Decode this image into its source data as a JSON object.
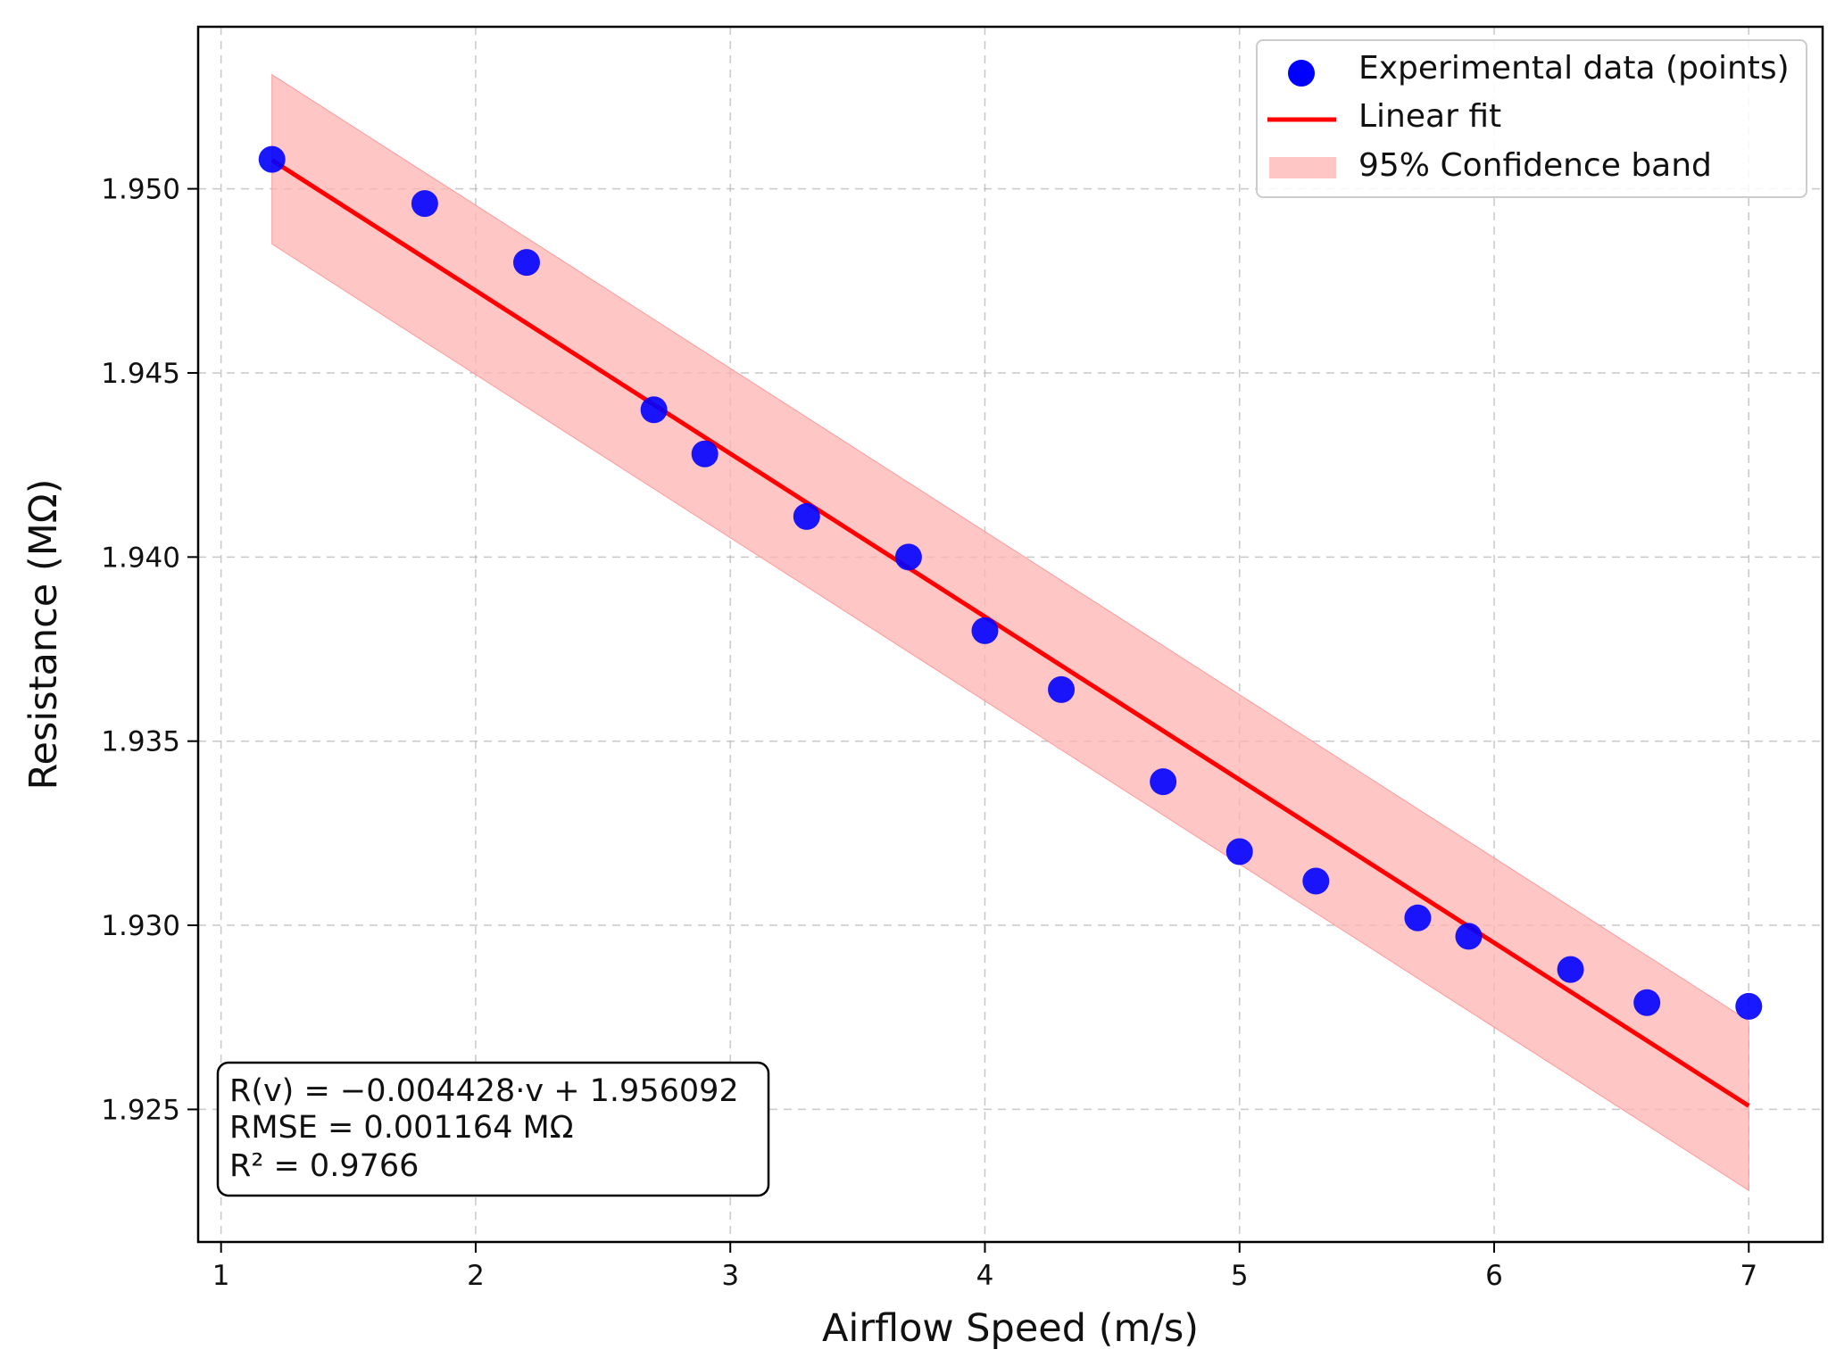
{
  "chart_data": {
    "type": "scatter",
    "title": "",
    "xlabel": "Airflow Speed (m/s)",
    "ylabel": "Resistance (MΩ)",
    "xlim": [
      0.91,
      7.29
    ],
    "ylim": [
      1.9214,
      1.9544
    ],
    "xticks": [
      1,
      2,
      3,
      4,
      5,
      6,
      7
    ],
    "xtick_labels": [
      "1",
      "2",
      "3",
      "4",
      "5",
      "6",
      "7"
    ],
    "yticks": [
      1.925,
      1.93,
      1.935,
      1.94,
      1.945,
      1.95
    ],
    "ytick_labels": [
      "1.925",
      "1.930",
      "1.935",
      "1.940",
      "1.945",
      "1.950"
    ],
    "grid": true,
    "series": [
      {
        "name": "Experimental data (points)",
        "kind": "scatter",
        "color": "#0000ff",
        "x": [
          1.2,
          1.8,
          2.2,
          2.7,
          2.9,
          3.3,
          3.7,
          4.0,
          4.3,
          4.7,
          5.0,
          5.3,
          5.7,
          5.9,
          6.3,
          6.6,
          7.0
        ],
        "y": [
          1.9508,
          1.9496,
          1.948,
          1.944,
          1.9428,
          1.9411,
          1.94,
          1.938,
          1.9364,
          1.9339,
          1.932,
          1.9312,
          1.9302,
          1.9297,
          1.9288,
          1.9279,
          1.9278
        ]
      },
      {
        "name": "Linear fit",
        "kind": "line",
        "color": "#ff0000",
        "x": [
          1.2,
          7.0
        ],
        "y": [
          1.950778,
          1.925096
        ]
      },
      {
        "name": "95% Confidence band",
        "kind": "band",
        "color": "#ffb3b3",
        "x": [
          1.2,
          7.0
        ],
        "upper": [
          1.9531,
          1.9274
        ],
        "lower": [
          1.9485,
          1.9228
        ]
      }
    ],
    "legend": {
      "position": "top-right",
      "entries": [
        "Experimental data (points)",
        "Linear fit",
        "95% Confidence band"
      ]
    },
    "annotation": {
      "position": "bottom-left",
      "lines": [
        "R(v) = −0.004428·v + 1.956092",
        "RMSE = 0.001164 MΩ",
        "R² = 0.9766"
      ]
    }
  }
}
